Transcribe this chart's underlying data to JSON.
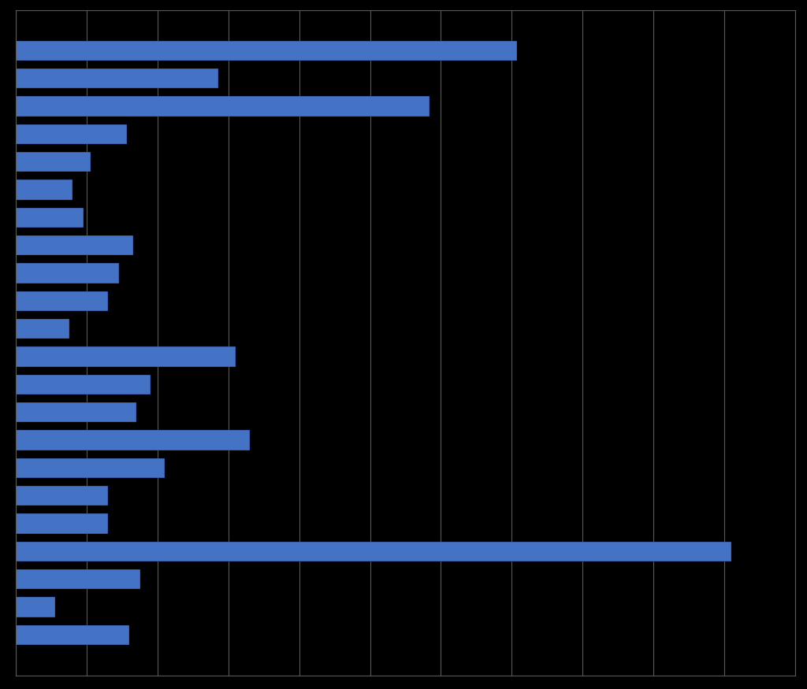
{
  "bar_values": [
    707,
    286,
    584,
    156,
    105,
    80,
    95,
    165,
    145,
    130,
    75,
    310,
    190,
    170,
    330,
    210,
    130,
    130,
    1010,
    175,
    55,
    160
  ],
  "bar_color": "#4472C4",
  "background_color": "#000000",
  "grid_color": "#5A5A5A",
  "figsize": [
    10.24,
    8.75
  ],
  "dpi": 100,
  "xlim": [
    0,
    1100
  ],
  "xticks": [
    0,
    100,
    200,
    300,
    400,
    500,
    600,
    700,
    800,
    900,
    1000,
    1100
  ]
}
